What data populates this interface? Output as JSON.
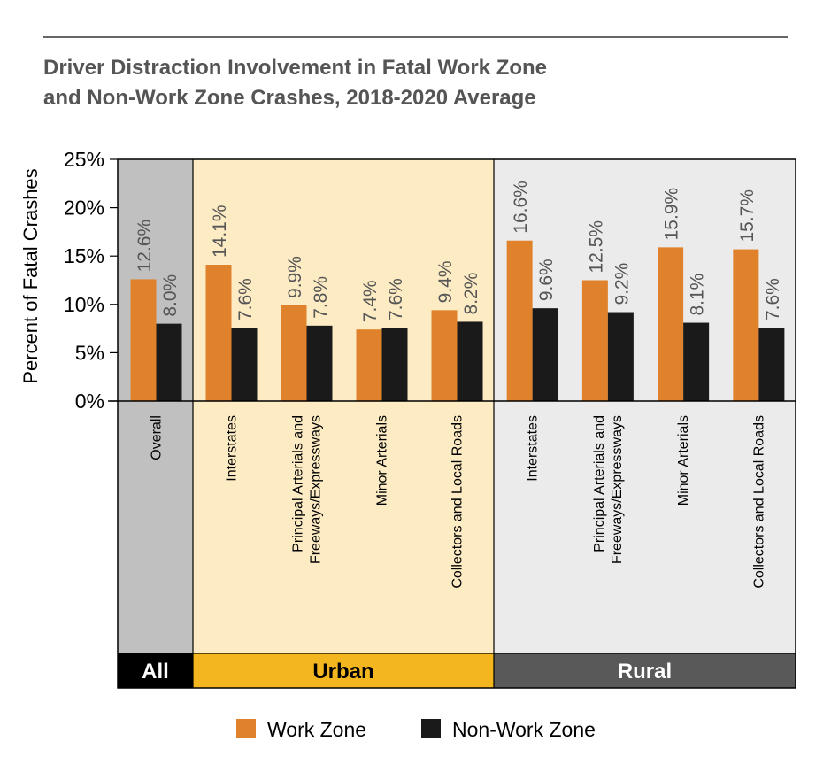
{
  "chart_data": {
    "type": "bar",
    "title_line1": "Driver Distraction Involvement in Fatal Work Zone",
    "title_line2": "and Non-Work Zone Crashes, 2018-2020 Average",
    "ylabel": "Percent of Fatal Crashes",
    "ylim": [
      0,
      25
    ],
    "yticks": [
      {
        "value": 0,
        "label": "0%"
      },
      {
        "value": 5,
        "label": "5%"
      },
      {
        "value": 10,
        "label": "10%"
      },
      {
        "value": 15,
        "label": "15%"
      },
      {
        "value": 20,
        "label": "20%"
      },
      {
        "value": 25,
        "label": "25%"
      }
    ],
    "groups": [
      {
        "name": "All",
        "bg": "#c0c0c0",
        "band_color": "#000000",
        "band_text_color": "#ffffff",
        "span": 1
      },
      {
        "name": "Urban",
        "bg": "#fdebc4",
        "band_color": "#f3b61f",
        "band_text_color": "#000000",
        "span": 4
      },
      {
        "name": "Rural",
        "bg": "#ebebeb",
        "band_color": "#595959",
        "band_text_color": "#ffffff",
        "span": 4
      }
    ],
    "categories": [
      {
        "lines": [
          "Overall"
        ]
      },
      {
        "lines": [
          "Interstates"
        ]
      },
      {
        "lines": [
          "Principal Arterials and",
          "Freeways/Expressways"
        ]
      },
      {
        "lines": [
          "Minor Arterials"
        ]
      },
      {
        "lines": [
          "Collectors and Local Roads"
        ]
      },
      {
        "lines": [
          "Interstates"
        ]
      },
      {
        "lines": [
          "Principal Arterials and",
          "Freeways/Expressways"
        ]
      },
      {
        "lines": [
          "Minor Arterials"
        ]
      },
      {
        "lines": [
          "Collectors and Local Roads"
        ]
      }
    ],
    "series": [
      {
        "name": "Work Zone",
        "color": "#e0822b",
        "values": [
          12.6,
          14.1,
          9.9,
          7.4,
          9.4,
          16.6,
          12.5,
          15.9,
          15.7
        ],
        "labels": [
          "12.6%",
          "14.1%",
          "9.9%",
          "7.4%",
          "9.4%",
          "16.6%",
          "12.5%",
          "15.9%",
          "15.7%"
        ]
      },
      {
        "name": "Non-Work Zone",
        "color": "#1a1a1a",
        "values": [
          8.0,
          7.6,
          7.8,
          7.6,
          8.2,
          9.6,
          9.2,
          8.1,
          7.6
        ],
        "labels": [
          "8.0%",
          "7.6%",
          "7.8%",
          "7.6%",
          "8.2%",
          "9.6%",
          "9.2%",
          "8.1%",
          "7.6%"
        ]
      }
    ],
    "legend_position": "bottom",
    "grid": false
  }
}
